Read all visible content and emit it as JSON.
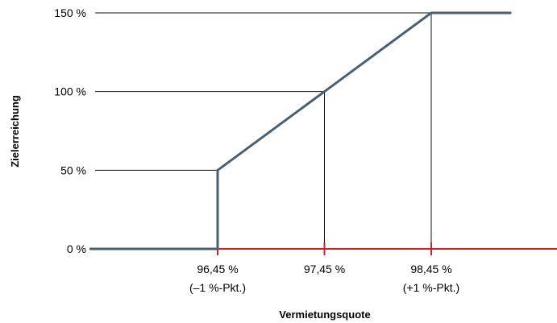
{
  "chart_data": {
    "type": "line",
    "title": "",
    "xlabel": "Vermietungsquote",
    "ylabel": "Zielerreichung",
    "ylim": [
      0,
      150
    ],
    "y_ticks": [
      {
        "value": 0,
        "label": "0 %"
      },
      {
        "value": 50,
        "label": "50 %"
      },
      {
        "value": 100,
        "label": "100 %"
      },
      {
        "value": 150,
        "label": "150 %"
      }
    ],
    "x_ticks": [
      {
        "value": 96.45,
        "label": "96,45 %",
        "sublabel": "(–1 %-Pkt.)"
      },
      {
        "value": 97.45,
        "label": "97,45 %",
        "sublabel": ""
      },
      {
        "value": 98.45,
        "label": "98,45 %",
        "sublabel": "(+1 %-Pkt.)"
      }
    ],
    "series": [
      {
        "points": [
          {
            "x": 95.25,
            "y": 0
          },
          {
            "x": 96.45,
            "y": 0
          },
          {
            "x": 96.45,
            "y": 50
          },
          {
            "x": 97.45,
            "y": 100
          },
          {
            "x": 98.45,
            "y": 150
          },
          {
            "x": 99.2,
            "y": 150
          }
        ]
      }
    ],
    "colors": {
      "line": "#4a5f72",
      "x_axis": "#d0202a",
      "reference": "#111111"
    }
  }
}
